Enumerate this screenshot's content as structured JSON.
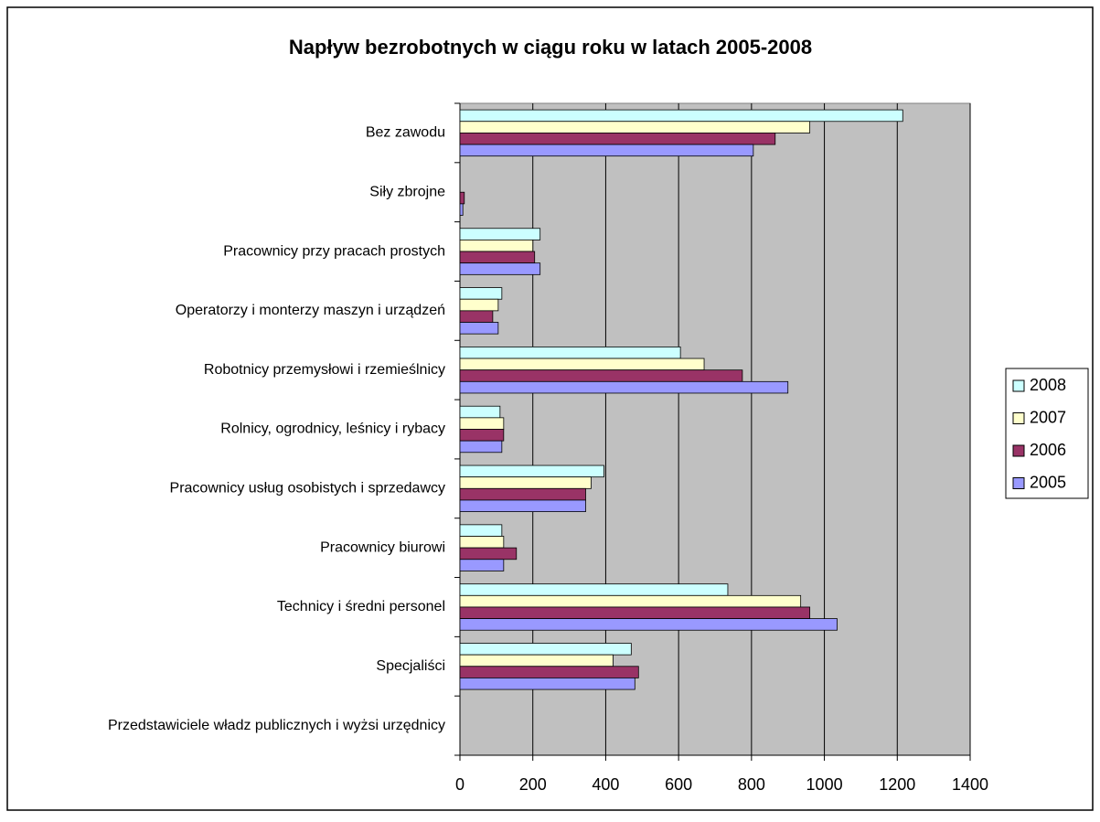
{
  "chart_data": {
    "type": "bar",
    "orientation": "horizontal",
    "title": "Napływ bezrobotnych w ciągu roku w latach 2005-2008",
    "categories": [
      "Bez zawodu",
      "Siły zbrojne",
      "Pracownicy przy pracach prostych",
      "Operatorzy i monterzy maszyn i urządzeń",
      "Robotnicy przemysłowi i rzemieślnicy",
      "Rolnicy, ogrodnicy, leśnicy i rybacy",
      "Pracownicy usług osobistych i sprzedawcy",
      "Pracownicy biurowi",
      "Technicy i średni personel",
      "Specjaliści",
      "Przedstawiciele władz publicznych i wyżsi urzędnicy"
    ],
    "series": [
      {
        "name": "2008",
        "color": "#ccffff",
        "values": [
          1215,
          0,
          220,
          115,
          605,
          110,
          395,
          115,
          735,
          470,
          0
        ]
      },
      {
        "name": "2007",
        "color": "#ffffcc",
        "values": [
          960,
          0,
          200,
          105,
          670,
          120,
          360,
          120,
          935,
          420,
          0
        ]
      },
      {
        "name": "2006",
        "color": "#993366",
        "values": [
          865,
          12,
          205,
          90,
          775,
          120,
          345,
          155,
          960,
          490,
          0
        ]
      },
      {
        "name": "2005",
        "color": "#9999ff",
        "values": [
          805,
          8,
          220,
          105,
          900,
          115,
          345,
          120,
          1035,
          480,
          0
        ]
      }
    ],
    "xlim": [
      0,
      1400
    ],
    "xticks": [
      0,
      200,
      400,
      600,
      800,
      1000,
      1200,
      1400
    ],
    "grid": true,
    "legend": "right"
  }
}
